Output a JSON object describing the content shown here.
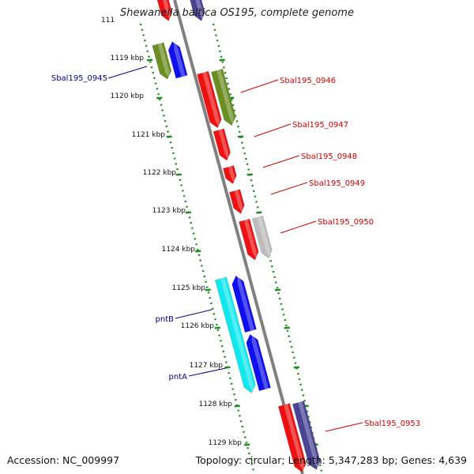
{
  "title": "Shewanella baltica OS195, complete genome",
  "footer": {
    "accession": "Accession: NC_009997",
    "topology": "Topology: circular; Length: 5,347,283 bp; Genes: 4,639"
  },
  "ruler": {
    "clipped_label": "111",
    "kbp_labels": [
      "1119 kbp",
      "1120 kbp",
      "1121 kbp",
      "1122 kbp",
      "1123 kbp",
      "1124 kbp",
      "1125 kbp",
      "1126 kbp",
      "1127 kbp",
      "1128 kbp",
      "1129 kbp"
    ]
  },
  "gene_labels": {
    "left": [
      "Sbal195_0945",
      "pntB",
      "pntA"
    ],
    "right": [
      "Sbal195_0946",
      "Sbal195_0947",
      "Sbal195_0948",
      "Sbal195_0949",
      "Sbal195_0950",
      "Sbal195_0953"
    ]
  },
  "colors": {
    "red": "#ee1111",
    "olive": "#6b8e23",
    "blue": "#1010ee",
    "cyan": "#11e8ee",
    "gray": "#bcbcbc",
    "slate": "#4a4494",
    "left_label": "#00008b",
    "right_label": "#cc0000",
    "ruler": "#228b22",
    "backbone": "#808080"
  }
}
